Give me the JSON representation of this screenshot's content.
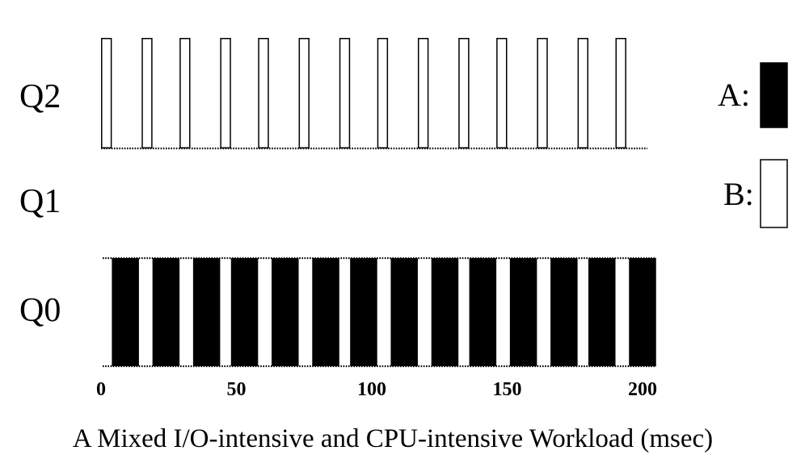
{
  "chart_data": {
    "type": "bar",
    "xlabel": "A Mixed I/O-intensive and CPU-intensive Workload (msec)",
    "xlim": [
      0,
      200
    ],
    "x_ticks": [
      0,
      50,
      100,
      150,
      200
    ],
    "x_tick_labels": [
      "0",
      "50",
      "100",
      "150",
      "200"
    ],
    "queues": [
      "Q2",
      "Q1",
      "Q0"
    ],
    "legend": [
      {
        "key": "A",
        "label": "A:",
        "fill": "#000000"
      },
      {
        "key": "B",
        "label": "B:",
        "fill": "#ffffff"
      }
    ],
    "series": [
      {
        "key": "A",
        "queue": "Q0",
        "segments": [
          {
            "start": 4,
            "end": 14
          },
          {
            "start": 19,
            "end": 29
          },
          {
            "start": 34,
            "end": 44
          },
          {
            "start": 48,
            "end": 58
          },
          {
            "start": 63,
            "end": 73
          },
          {
            "start": 78,
            "end": 88
          },
          {
            "start": 92,
            "end": 102
          },
          {
            "start": 107,
            "end": 117
          },
          {
            "start": 122,
            "end": 132
          },
          {
            "start": 136,
            "end": 146
          },
          {
            "start": 151,
            "end": 161
          },
          {
            "start": 166,
            "end": 176
          },
          {
            "start": 180,
            "end": 190
          },
          {
            "start": 195,
            "end": 205
          }
        ]
      },
      {
        "key": "B",
        "queue": "Q2",
        "segments": [
          {
            "start": 0,
            "end": 4
          },
          {
            "start": 15,
            "end": 19
          },
          {
            "start": 29,
            "end": 33
          },
          {
            "start": 44,
            "end": 48
          },
          {
            "start": 58,
            "end": 62
          },
          {
            "start": 73,
            "end": 77
          },
          {
            "start": 88,
            "end": 92
          },
          {
            "start": 102,
            "end": 106
          },
          {
            "start": 117,
            "end": 121
          },
          {
            "start": 132,
            "end": 136
          },
          {
            "start": 146,
            "end": 150
          },
          {
            "start": 161,
            "end": 165
          },
          {
            "start": 176,
            "end": 180
          },
          {
            "start": 190,
            "end": 194
          }
        ]
      }
    ]
  }
}
